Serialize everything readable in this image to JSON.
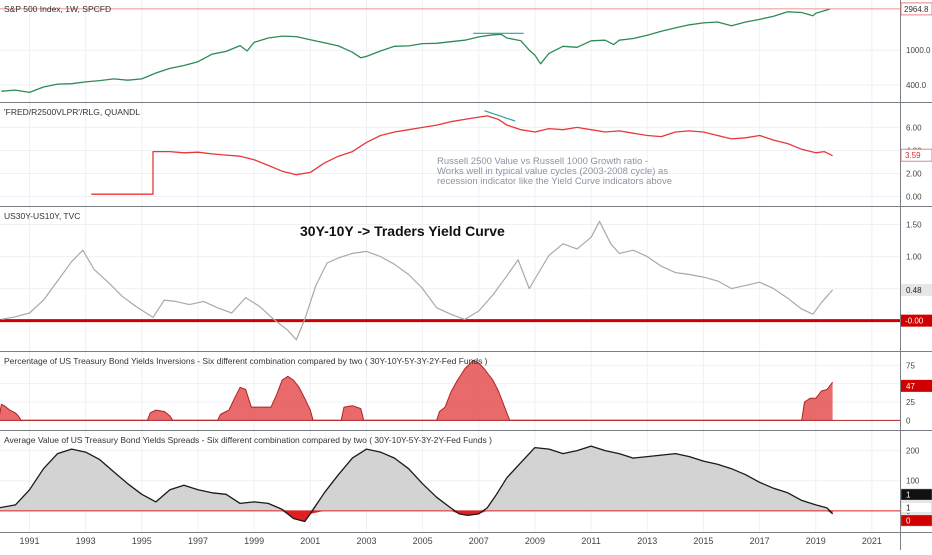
{
  "chart_data": {
    "type": "line",
    "x_axis": {
      "tick_labels": [
        "1991",
        "1993",
        "1995",
        "1997",
        "1999",
        "2001",
        "2003",
        "2005",
        "2007",
        "2009",
        "2011",
        "2013",
        "2015",
        "2017",
        "2019",
        "2021"
      ]
    },
    "panels": [
      {
        "id": "spx",
        "title": "S&P 500 Index, 1W, SPCFD",
        "scale": "log",
        "ylim": [
          300,
          3200
        ],
        "yticks": [
          "400.0",
          "1000.0"
        ],
        "ytick_values": [
          400,
          1000
        ],
        "last_value": "2964.8",
        "last_value_num": 2964.8,
        "series_color": "#2e8b57",
        "ref_line": 2964.8,
        "x": [
          1990.0,
          1990.5,
          1991.0,
          1991.5,
          1992.0,
          1992.5,
          1993.0,
          1993.5,
          1994.0,
          1994.5,
          1995.0,
          1995.5,
          1996.0,
          1996.5,
          1997.0,
          1997.5,
          1998.0,
          1998.5,
          1998.75,
          1999.0,
          1999.5,
          2000.0,
          2000.5,
          2001.0,
          2001.5,
          2002.0,
          2002.5,
          2002.8,
          2003.0,
          2003.5,
          2004.0,
          2004.5,
          2005.0,
          2005.5,
          2006.0,
          2006.5,
          2007.0,
          2007.5,
          2007.8,
          2008.0,
          2008.5,
          2008.8,
          2009.0,
          2009.2,
          2009.5,
          2010.0,
          2010.5,
          2011.0,
          2011.5,
          2011.8,
          2012.0,
          2012.5,
          2013.0,
          2013.5,
          2014.0,
          2014.5,
          2015.0,
          2015.5,
          2016.0,
          2016.5,
          2017.0,
          2017.5,
          2018.0,
          2018.5,
          2018.9,
          2019.0,
          2019.5
        ],
        "y": [
          340,
          350,
          330,
          380,
          410,
          415,
          435,
          450,
          470,
          455,
          470,
          550,
          620,
          670,
          740,
          900,
          970,
          1130,
          980,
          1230,
          1380,
          1450,
          1430,
          1320,
          1220,
          1120,
          950,
          820,
          850,
          980,
          1110,
          1120,
          1190,
          1200,
          1250,
          1300,
          1420,
          1500,
          1520,
          1380,
          1280,
          1000,
          880,
          700,
          920,
          1110,
          1080,
          1280,
          1300,
          1160,
          1300,
          1360,
          1480,
          1650,
          1800,
          1950,
          2050,
          2100,
          1900,
          2100,
          2250,
          2450,
          2750,
          2700,
          2480,
          2650,
          2950
        ],
        "annotation_segment": {
          "x": [
            2006.8,
            2008.6
          ],
          "y": [
            1560,
            1560
          ]
        }
      },
      {
        "id": "rlg",
        "title": "'FRED/R2500VLPR'/RLG, QUANDL",
        "ylim": [
          -0.3,
          7.6
        ],
        "yticks": [
          "0.00",
          "2.00",
          "4.00",
          "6.00"
        ],
        "ytick_values": [
          0,
          2,
          4,
          6
        ],
        "last_value": "3.59",
        "last_value_num": 3.59,
        "series_color": "#e63939",
        "x": [
          1993.2,
          1995.4,
          1995.4,
          1996.0,
          1996.5,
          1997.0,
          1997.5,
          1998.0,
          1998.5,
          1999.0,
          1999.5,
          2000.0,
          2000.5,
          2001.0,
          2001.5,
          2002.0,
          2002.5,
          2003.0,
          2003.5,
          2004.0,
          2004.5,
          2005.0,
          2005.5,
          2006.0,
          2006.5,
          2007.0,
          2007.3,
          2007.7,
          2008.0,
          2008.5,
          2009.0,
          2009.5,
          2010.0,
          2010.5,
          2011.0,
          2011.5,
          2012.0,
          2012.5,
          2013.0,
          2013.5,
          2014.0,
          2014.5,
          2015.0,
          2015.5,
          2016.0,
          2016.5,
          2017.0,
          2017.5,
          2018.0,
          2018.5,
          2019.0,
          2019.3,
          2019.6
        ],
        "y": [
          0.2,
          0.2,
          3.9,
          3.9,
          3.8,
          3.85,
          3.7,
          3.6,
          3.5,
          3.2,
          2.7,
          2.2,
          1.9,
          2.1,
          2.9,
          3.5,
          3.9,
          4.7,
          5.3,
          5.6,
          5.8,
          6.0,
          6.2,
          6.5,
          6.7,
          6.9,
          7.0,
          6.7,
          6.2,
          5.8,
          5.6,
          5.9,
          5.8,
          6.0,
          5.8,
          5.6,
          5.7,
          5.5,
          5.3,
          5.2,
          5.6,
          5.7,
          5.6,
          5.3,
          5.0,
          5.1,
          5.3,
          4.9,
          4.6,
          4.1,
          3.8,
          3.9,
          3.55
        ],
        "annotation_segment": {
          "x": [
            2007.2,
            2008.3
          ],
          "y": [
            7.45,
            6.55
          ]
        },
        "note_lines": [
          "Russell 2500 Value vs Russell 1000 Growth ratio -",
          "Works well in typical value cycles (2003-2008 cycle) as",
          "recession indicator like the Yield Curve indicators above"
        ]
      },
      {
        "id": "yc",
        "title": "US30Y-US10Y, TVC",
        "headline": "30Y-10Y -> Traders Yield Curve",
        "ylim": [
          -0.38,
          1.68
        ],
        "yticks": [
          "0.50",
          "1.00",
          "1.50"
        ],
        "ytick_values": [
          0.5,
          1.0,
          1.5
        ],
        "last_value": "0.48",
        "last_value_num": 0.48,
        "zero_label": "-0.00",
        "zero_value": 0,
        "series_color": "#a9a9a9",
        "zero_color": "#d00000",
        "x": [
          1990.0,
          1990.5,
          1991.0,
          1991.5,
          1992.0,
          1992.5,
          1992.9,
          1993.3,
          1993.8,
          1994.3,
          1994.8,
          1995.4,
          1995.8,
          1996.2,
          1996.7,
          1997.2,
          1997.7,
          1998.2,
          1998.7,
          1999.2,
          1999.7,
          2000.2,
          2000.5,
          2000.8,
          2001.2,
          2001.6,
          2002.0,
          2002.5,
          2003.0,
          2003.5,
          2004.0,
          2004.5,
          2005.0,
          2005.5,
          2006.0,
          2006.5,
          2007.0,
          2007.5,
          2008.0,
          2008.4,
          2008.8,
          2009.0,
          2009.5,
          2010.0,
          2010.5,
          2011.0,
          2011.3,
          2011.7,
          2012.0,
          2012.5,
          2013.0,
          2013.5,
          2014.0,
          2014.5,
          2015.0,
          2015.5,
          2016.0,
          2016.5,
          2017.0,
          2017.5,
          2018.0,
          2018.5,
          2018.9,
          2019.2,
          2019.6
        ],
        "y": [
          0.02,
          0.06,
          0.12,
          0.32,
          0.62,
          0.92,
          1.1,
          0.8,
          0.6,
          0.38,
          0.22,
          0.05,
          0.32,
          0.3,
          0.25,
          0.3,
          0.2,
          0.12,
          0.36,
          0.22,
          0.02,
          -0.15,
          -0.3,
          0.02,
          0.55,
          0.9,
          0.98,
          1.05,
          1.08,
          1.0,
          0.88,
          0.72,
          0.5,
          0.2,
          0.1,
          0.02,
          0.15,
          0.4,
          0.7,
          0.95,
          0.5,
          0.65,
          1.02,
          1.2,
          1.12,
          1.3,
          1.55,
          1.2,
          1.05,
          1.1,
          1.0,
          0.85,
          0.75,
          0.72,
          0.68,
          0.62,
          0.5,
          0.55,
          0.6,
          0.5,
          0.35,
          0.18,
          0.1,
          0.28,
          0.48
        ]
      },
      {
        "id": "inv",
        "title": "Percentage of US Treasury Bond Yields Inversions - Six different combination compared by two  ( 30Y-10Y-5Y-3Y-2Y-Fed Funds )",
        "ylim": [
          -5,
          85
        ],
        "yticks": [
          "0",
          "25",
          "50",
          "75"
        ],
        "ytick_values": [
          0,
          25,
          50,
          75
        ],
        "last_value": "47",
        "last_value_num": 47,
        "series_color": "#b22222",
        "fill_color": "#e45050",
        "x": [
          1989.9,
          1990.0,
          1990.1,
          1990.3,
          1990.5,
          1990.6,
          1990.7,
          1995.2,
          1995.3,
          1995.5,
          1995.8,
          1996.0,
          1996.1,
          1997.7,
          1997.8,
          1997.9,
          1998.1,
          1998.3,
          1998.5,
          1998.7,
          1998.8,
          1998.9,
          1999.6,
          1999.8,
          2000.0,
          2000.2,
          2000.4,
          2000.6,
          2000.8,
          2001.0,
          2001.1,
          2002.1,
          2002.2,
          2002.5,
          2002.8,
          2002.9,
          2005.5,
          2005.6,
          2005.8,
          2006.0,
          2006.2,
          2006.5,
          2006.8,
          2007.0,
          2007.2,
          2007.5,
          2007.7,
          2007.9,
          2008.0,
          2008.1,
          2018.5,
          2018.6,
          2018.8,
          2019.0,
          2019.2,
          2019.4,
          2019.6
        ],
        "y": [
          0,
          22,
          20,
          14,
          10,
          6,
          0,
          0,
          10,
          14,
          12,
          6,
          0,
          0,
          8,
          10,
          14,
          30,
          45,
          42,
          30,
          18,
          18,
          35,
          55,
          60,
          55,
          45,
          30,
          14,
          0,
          0,
          18,
          20,
          16,
          0,
          0,
          12,
          18,
          38,
          52,
          70,
          82,
          78,
          70,
          55,
          40,
          20,
          10,
          0,
          0,
          25,
          30,
          30,
          40,
          42,
          52
        ]
      },
      {
        "id": "avg",
        "title": "Average Value of US Treasury Bond Yields Spreads - Six different combination compared by two  ( 30Y-10Y-5Y-3Y-2Y-Fed Funds )",
        "ylim": [
          -50,
          245
        ],
        "yticks": [
          "0",
          "100",
          "200"
        ],
        "ytick_values": [
          0,
          100,
          200
        ],
        "last_labels": [
          "1",
          "1",
          "0"
        ],
        "series_color": "#1a1a1a",
        "fill_pos_color": "#d3d3d3",
        "fill_neg_color": "#e02020",
        "zero_color": "#e02020",
        "x": [
          1989.9,
          1990.5,
          1991.0,
          1991.5,
          1992.0,
          1992.5,
          1993.0,
          1993.5,
          1994.0,
          1994.5,
          1995.0,
          1995.5,
          1996.0,
          1996.5,
          1997.0,
          1997.5,
          1998.0,
          1998.5,
          1999.0,
          1999.5,
          2000.0,
          2000.4,
          2000.8,
          2001.0,
          2001.5,
          2002.0,
          2002.5,
          2003.0,
          2003.5,
          2004.0,
          2004.5,
          2005.0,
          2005.5,
          2006.0,
          2006.3,
          2006.6,
          2007.0,
          2007.3,
          2007.6,
          2008.0,
          2008.5,
          2009.0,
          2009.5,
          2010.0,
          2010.5,
          2011.0,
          2011.5,
          2012.0,
          2012.5,
          2013.0,
          2013.5,
          2014.0,
          2014.5,
          2015.0,
          2015.5,
          2016.0,
          2016.5,
          2017.0,
          2017.5,
          2018.0,
          2018.5,
          2019.0,
          2019.4,
          2019.6
        ],
        "y": [
          10,
          20,
          70,
          140,
          190,
          205,
          195,
          170,
          130,
          90,
          55,
          30,
          70,
          85,
          70,
          60,
          55,
          25,
          30,
          25,
          5,
          -25,
          -35,
          -10,
          60,
          120,
          175,
          205,
          195,
          175,
          140,
          90,
          45,
          10,
          -10,
          -15,
          -10,
          10,
          50,
          110,
          160,
          210,
          205,
          190,
          200,
          215,
          200,
          190,
          175,
          180,
          185,
          190,
          180,
          165,
          155,
          140,
          120,
          95,
          75,
          60,
          35,
          20,
          10,
          -10
        ]
      }
    ]
  }
}
